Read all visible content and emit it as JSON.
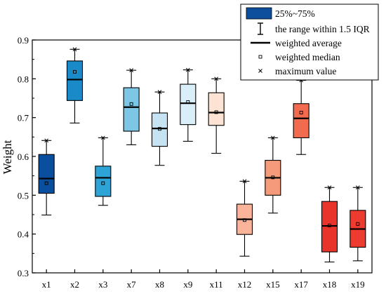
{
  "chart_data": {
    "type": "box",
    "ylabel": "Weight",
    "xlabel": "",
    "ylim": [
      0.3,
      0.9
    ],
    "yticks": [
      "0.3",
      "0.4",
      "0.5",
      "0.6",
      "0.7",
      "0.8",
      "0.9"
    ],
    "categories": [
      "x1",
      "x2",
      "x3",
      "x7",
      "x8",
      "x9",
      "x11",
      "x12",
      "x15",
      "x17",
      "x18",
      "x19"
    ],
    "box_colors": [
      "#0a4f9e",
      "#1a8ac9",
      "#2ea3d6",
      "#7cc7e5",
      "#c6e3f4",
      "#daeefa",
      "#fce3d3",
      "#f9b49a",
      "#f59b7b",
      "#f26b4f",
      "#e8342b",
      "#ee3b2f"
    ],
    "boxes": [
      {
        "q1": 0.505,
        "q3": 0.605,
        "whisker_low": 0.449,
        "whisker_high": 0.641,
        "mean": 0.543,
        "median": 0.531,
        "max": 0.641
      },
      {
        "q1": 0.744,
        "q3": 0.846,
        "whisker_low": 0.686,
        "whisker_high": 0.876,
        "mean": 0.798,
        "median": 0.818,
        "max": 0.876
      },
      {
        "q1": 0.497,
        "q3": 0.575,
        "whisker_low": 0.474,
        "whisker_high": 0.648,
        "mean": 0.545,
        "median": 0.531,
        "max": 0.648
      },
      {
        "q1": 0.665,
        "q3": 0.777,
        "whisker_low": 0.63,
        "whisker_high": 0.822,
        "mean": 0.727,
        "median": 0.735,
        "max": 0.822
      },
      {
        "q1": 0.626,
        "q3": 0.712,
        "whisker_low": 0.577,
        "whisker_high": 0.766,
        "mean": 0.672,
        "median": 0.671,
        "max": 0.766
      },
      {
        "q1": 0.682,
        "q3": 0.786,
        "whisker_low": 0.639,
        "whisker_high": 0.823,
        "mean": 0.737,
        "median": 0.74,
        "max": 0.823
      },
      {
        "q1": 0.68,
        "q3": 0.764,
        "whisker_low": 0.608,
        "whisker_high": 0.8,
        "mean": 0.713,
        "median": 0.714,
        "max": 0.8
      },
      {
        "q1": 0.399,
        "q3": 0.477,
        "whisker_low": 0.343,
        "whisker_high": 0.536,
        "mean": 0.438,
        "median": 0.436,
        "max": 0.536
      },
      {
        "q1": 0.5,
        "q3": 0.59,
        "whisker_low": 0.454,
        "whisker_high": 0.648,
        "mean": 0.545,
        "median": 0.546,
        "max": 0.648
      },
      {
        "q1": 0.648,
        "q3": 0.736,
        "whisker_low": 0.605,
        "whisker_high": 0.796,
        "mean": 0.698,
        "median": 0.713,
        "max": 0.796
      },
      {
        "q1": 0.354,
        "q3": 0.484,
        "whisker_low": 0.328,
        "whisker_high": 0.52,
        "mean": 0.421,
        "median": 0.422,
        "max": 0.52
      },
      {
        "q1": 0.366,
        "q3": 0.461,
        "whisker_low": 0.331,
        "whisker_high": 0.52,
        "mean": 0.413,
        "median": 0.426,
        "max": 0.52
      }
    ],
    "legend": {
      "placement": "top-right",
      "box_color": "#0d4f9c",
      "entries": [
        {
          "symbol": "box",
          "label": "25%~75%"
        },
        {
          "symbol": "whisker",
          "label": "the range within 1.5 IQR"
        },
        {
          "symbol": "line",
          "label": "weighted average"
        },
        {
          "symbol": "square",
          "label": "weighted median"
        },
        {
          "symbol": "cross",
          "label": "maximum value"
        }
      ]
    },
    "grid": false
  }
}
